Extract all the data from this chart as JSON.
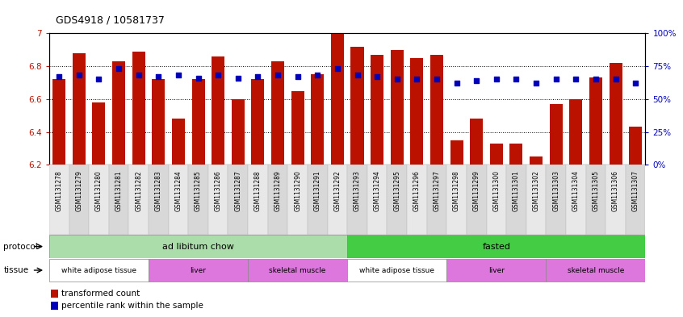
{
  "title": "GDS4918 / 10581737",
  "samples": [
    "GSM1131278",
    "GSM1131279",
    "GSM1131280",
    "GSM1131281",
    "GSM1131282",
    "GSM1131283",
    "GSM1131284",
    "GSM1131285",
    "GSM1131286",
    "GSM1131287",
    "GSM1131288",
    "GSM1131289",
    "GSM1131290",
    "GSM1131291",
    "GSM1131292",
    "GSM1131293",
    "GSM1131294",
    "GSM1131295",
    "GSM1131296",
    "GSM1131297",
    "GSM1131298",
    "GSM1131299",
    "GSM1131300",
    "GSM1131301",
    "GSM1131302",
    "GSM1131303",
    "GSM1131304",
    "GSM1131305",
    "GSM1131306",
    "GSM1131307"
  ],
  "bar_values": [
    6.72,
    6.88,
    6.58,
    6.83,
    6.89,
    6.72,
    6.48,
    6.72,
    6.86,
    6.6,
    6.72,
    6.83,
    6.65,
    6.75,
    7.0,
    6.92,
    6.87,
    6.9,
    6.85,
    6.87,
    6.35,
    6.48,
    6.33,
    6.33,
    6.25,
    6.57,
    6.6,
    6.73,
    6.82,
    6.43
  ],
  "percentile_values": [
    67,
    68,
    65,
    73,
    68,
    67,
    68,
    66,
    68,
    66,
    67,
    68,
    67,
    68,
    73,
    68,
    67,
    65,
    65,
    65,
    62,
    64,
    65,
    65,
    62,
    65,
    65,
    65,
    65,
    62
  ],
  "ylim_left": [
    6.2,
    7.0
  ],
  "ylim_right": [
    0,
    100
  ],
  "yticks_left": [
    6.2,
    6.4,
    6.6,
    6.8,
    7.0
  ],
  "ytick_labels_left": [
    "6.2",
    "6.4",
    "6.6",
    "6.8",
    "7"
  ],
  "yticks_right": [
    0,
    25,
    50,
    75,
    100
  ],
  "ytick_labels_right": [
    "0%",
    "25%",
    "50%",
    "75%",
    "100%"
  ],
  "bar_color": "#bb1100",
  "square_color": "#0000bb",
  "baseline": 6.2,
  "protocols": [
    {
      "label": "ad libitum chow",
      "start": 0,
      "end": 15,
      "color": "#aaddaa"
    },
    {
      "label": "fasted",
      "start": 15,
      "end": 30,
      "color": "#44cc44"
    }
  ],
  "tissues": [
    {
      "label": "white adipose tissue",
      "start": 0,
      "end": 5,
      "color": "#ffffff"
    },
    {
      "label": "liver",
      "start": 5,
      "end": 10,
      "color": "#dd77dd"
    },
    {
      "label": "skeletal muscle",
      "start": 10,
      "end": 15,
      "color": "#dd77dd"
    },
    {
      "label": "white adipose tissue",
      "start": 15,
      "end": 20,
      "color": "#ffffff"
    },
    {
      "label": "liver",
      "start": 20,
      "end": 25,
      "color": "#dd77dd"
    },
    {
      "label": "skeletal muscle",
      "start": 25,
      "end": 30,
      "color": "#dd77dd"
    }
  ],
  "legend_items": [
    {
      "label": "transformed count",
      "color": "#bb1100"
    },
    {
      "label": "percentile rank within the sample",
      "color": "#0000bb"
    }
  ]
}
